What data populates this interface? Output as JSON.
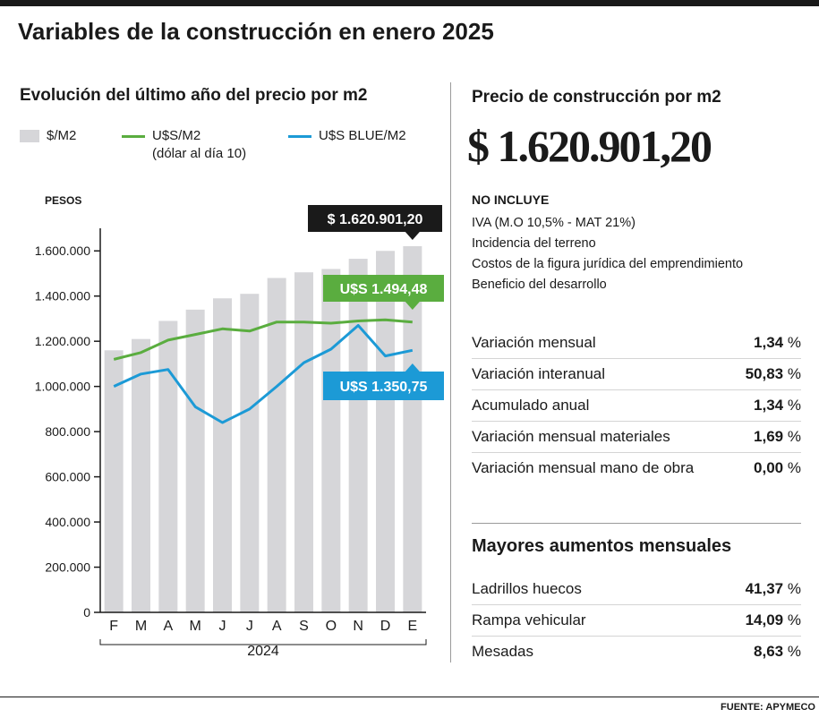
{
  "title": "Variables de la construcción en enero 2025",
  "chart_data": {
    "type": "bar",
    "title": "Evolución del último año del precio por m2",
    "ylabel": "PESOS",
    "xlabel": "2024",
    "ylim": [
      0,
      1700000
    ],
    "yticks": [
      {
        "value": 0,
        "label": "0"
      },
      {
        "value": 200000,
        "label": "200.000"
      },
      {
        "value": 400000,
        "label": "400.000"
      },
      {
        "value": 600000,
        "label": "600.000"
      },
      {
        "value": 800000,
        "label": "800.000"
      },
      {
        "value": 1000000,
        "label": "1.000.000"
      },
      {
        "value": 1200000,
        "label": "1.200.000"
      },
      {
        "value": 1400000,
        "label": "1.400.000"
      },
      {
        "value": 1600000,
        "label": "1.600.000"
      }
    ],
    "categories": [
      "F",
      "M",
      "A",
      "M",
      "J",
      "J",
      "A",
      "S",
      "O",
      "N",
      "D",
      "E"
    ],
    "legend": [
      {
        "name": "$/M2",
        "sub": "",
        "color": "#d6d6d9",
        "kind": "bar"
      },
      {
        "name": "U$S/M2",
        "sub": "(dólar al día 10)",
        "color": "#5aad3f",
        "kind": "line"
      },
      {
        "name": "U$S BLUE/M2",
        "sub": "",
        "color": "#1c9ad6",
        "kind": "line"
      }
    ],
    "series": [
      {
        "name": "$/M2",
        "type": "bar",
        "color": "#d6d6d9",
        "values": [
          1160000,
          1210000,
          1290000,
          1340000,
          1390000,
          1410000,
          1480000,
          1505000,
          1520000,
          1565000,
          1600000,
          1620901.2
        ]
      },
      {
        "name": "U$S/M2",
        "type": "line",
        "color": "#5aad3f",
        "values": [
          1120000,
          1150000,
          1205000,
          1230000,
          1255000,
          1245000,
          1285000,
          1285000,
          1280000,
          1290000,
          1295000,
          1285000
        ]
      },
      {
        "name": "U$S BLUE/M2",
        "type": "line",
        "color": "#1c9ad6",
        "values": [
          1000000,
          1055000,
          1075000,
          910000,
          840000,
          900000,
          1000000,
          1105000,
          1165000,
          1270000,
          1135000,
          1160000
        ]
      }
    ],
    "annotations": [
      {
        "text": "$ 1.620.901,20",
        "series": 0,
        "bg": "#1a1a1a",
        "color": "#ffffff"
      },
      {
        "text": "U$S 1.494,48",
        "series": 1,
        "bg": "#5aad3f",
        "color": "#ffffff"
      },
      {
        "text": "U$S 1.350,75",
        "series": 2,
        "bg": "#1c9ad6",
        "color": "#ffffff"
      }
    ]
  },
  "price_panel": {
    "title": "Precio de construcción por m2",
    "value": "$ 1.620.901,20",
    "not_included_title": "NO INCLUYE",
    "not_included": [
      "IVA (M.O 10,5% - MAT 21%)",
      "Incidencia del terreno",
      "Costos de la figura jurídica del emprendimiento",
      "Beneficio del desarrollo"
    ]
  },
  "stats": [
    {
      "label": "Variación mensual",
      "value": "1,34"
    },
    {
      "label": "Variación interanual",
      "value": "50,83"
    },
    {
      "label": "Acumulado anual",
      "value": "1,34"
    },
    {
      "label": "Variación mensual materiales",
      "value": "1,69"
    },
    {
      "label": "Variación mensual mano de obra",
      "value": "0,00"
    }
  ],
  "percent_symbol": "%",
  "increases": {
    "title": "Mayores aumentos mensuales",
    "items": [
      {
        "label": "Ladrillos huecos",
        "value": "41,37"
      },
      {
        "label": "Rampa vehicular",
        "value": "14,09"
      },
      {
        "label": "Mesadas",
        "value": "8,63"
      }
    ]
  },
  "source": {
    "label": "FUENTE:",
    "name": "APYMECO"
  }
}
